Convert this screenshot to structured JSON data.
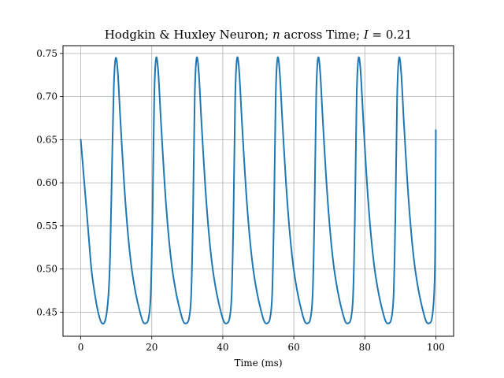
{
  "chart_data": {
    "type": "line",
    "title": {
      "prefix": "Hodgkin & Huxley Neuron; ",
      "var_n": "n",
      "middle": " across Time; ",
      "var_i": "I",
      "suffix": " = 0.21"
    },
    "xlabel": "Time (ms)",
    "ylabel": "",
    "xlim": [
      -5,
      105
    ],
    "ylim": [
      0.422,
      0.759
    ],
    "xticks": [
      0,
      20,
      40,
      60,
      80,
      100
    ],
    "yticks": [
      0.45,
      0.5,
      0.55,
      0.6,
      0.65,
      0.7,
      0.75
    ],
    "xtick_labels": [
      "0",
      "20",
      "40",
      "60",
      "80",
      "100"
    ],
    "ytick_labels": [
      "0.45",
      "0.50",
      "0.55",
      "0.60",
      "0.65",
      "0.70",
      "0.75"
    ],
    "grid": true,
    "series": [
      {
        "color": "#1f77b4",
        "spike_peaks_ms": [
          9.8,
          21.2,
          32.6,
          44.0,
          55.4,
          66.8,
          78.2,
          89.6
        ],
        "peak_value": 0.744,
        "trough_value": 0.437,
        "start_value": 0.65,
        "end_value": 0.661,
        "points": [
          [
            0.0,
            0.65
          ],
          [
            1.0,
            0.6
          ],
          [
            2.0,
            0.55
          ],
          [
            3.0,
            0.5
          ],
          [
            4.0,
            0.47
          ],
          [
            5.0,
            0.448
          ],
          [
            6.0,
            0.437
          ],
          [
            7.0,
            0.442
          ],
          [
            7.8,
            0.47
          ],
          [
            8.3,
            0.52
          ],
          [
            8.8,
            0.62
          ],
          [
            9.3,
            0.71
          ],
          [
            9.8,
            0.744
          ],
          [
            10.4,
            0.73
          ],
          [
            11.2,
            0.67
          ],
          [
            12.2,
            0.6
          ],
          [
            13.2,
            0.545
          ],
          [
            14.2,
            0.505
          ],
          [
            15.2,
            0.478
          ],
          [
            16.2,
            0.458
          ],
          [
            17.4,
            0.44
          ],
          [
            18.3,
            0.437
          ],
          [
            19.1,
            0.443
          ],
          [
            19.7,
            0.47
          ],
          [
            20.2,
            0.56
          ],
          [
            20.7,
            0.7
          ],
          [
            21.2,
            0.744
          ],
          [
            21.8,
            0.73
          ],
          [
            22.6,
            0.67
          ],
          [
            23.6,
            0.6
          ],
          [
            24.6,
            0.545
          ],
          [
            25.6,
            0.505
          ],
          [
            26.6,
            0.478
          ],
          [
            27.6,
            0.458
          ],
          [
            28.8,
            0.44
          ],
          [
            29.7,
            0.437
          ],
          [
            30.5,
            0.443
          ],
          [
            31.1,
            0.47
          ],
          [
            31.6,
            0.56
          ],
          [
            32.1,
            0.7
          ],
          [
            32.6,
            0.744
          ],
          [
            33.2,
            0.73
          ],
          [
            34.0,
            0.67
          ],
          [
            35.0,
            0.6
          ],
          [
            36.0,
            0.545
          ],
          [
            37.0,
            0.505
          ],
          [
            38.0,
            0.478
          ],
          [
            39.0,
            0.458
          ],
          [
            40.2,
            0.44
          ],
          [
            41.1,
            0.437
          ],
          [
            41.9,
            0.443
          ],
          [
            42.5,
            0.47
          ],
          [
            43.0,
            0.56
          ],
          [
            43.5,
            0.7
          ],
          [
            44.0,
            0.744
          ],
          [
            44.6,
            0.73
          ],
          [
            45.4,
            0.67
          ],
          [
            46.4,
            0.6
          ],
          [
            47.4,
            0.545
          ],
          [
            48.4,
            0.505
          ],
          [
            49.4,
            0.478
          ],
          [
            50.4,
            0.458
          ],
          [
            51.6,
            0.44
          ],
          [
            52.5,
            0.437
          ],
          [
            53.3,
            0.443
          ],
          [
            53.9,
            0.47
          ],
          [
            54.4,
            0.56
          ],
          [
            54.9,
            0.7
          ],
          [
            55.4,
            0.744
          ],
          [
            56.0,
            0.73
          ],
          [
            56.8,
            0.67
          ],
          [
            57.8,
            0.6
          ],
          [
            58.8,
            0.545
          ],
          [
            59.8,
            0.505
          ],
          [
            60.8,
            0.478
          ],
          [
            61.8,
            0.458
          ],
          [
            63.0,
            0.44
          ],
          [
            63.9,
            0.437
          ],
          [
            64.7,
            0.443
          ],
          [
            65.3,
            0.47
          ],
          [
            65.8,
            0.56
          ],
          [
            66.3,
            0.7
          ],
          [
            66.8,
            0.744
          ],
          [
            67.4,
            0.73
          ],
          [
            68.2,
            0.67
          ],
          [
            69.2,
            0.6
          ],
          [
            70.2,
            0.545
          ],
          [
            71.2,
            0.505
          ],
          [
            72.2,
            0.478
          ],
          [
            73.2,
            0.458
          ],
          [
            74.4,
            0.44
          ],
          [
            75.3,
            0.437
          ],
          [
            76.1,
            0.443
          ],
          [
            76.7,
            0.47
          ],
          [
            77.2,
            0.56
          ],
          [
            77.7,
            0.7
          ],
          [
            78.2,
            0.744
          ],
          [
            78.8,
            0.73
          ],
          [
            79.6,
            0.67
          ],
          [
            80.6,
            0.6
          ],
          [
            81.6,
            0.545
          ],
          [
            82.6,
            0.505
          ],
          [
            83.6,
            0.478
          ],
          [
            84.6,
            0.458
          ],
          [
            85.8,
            0.44
          ],
          [
            86.7,
            0.437
          ],
          [
            87.5,
            0.443
          ],
          [
            88.1,
            0.47
          ],
          [
            88.6,
            0.56
          ],
          [
            89.1,
            0.7
          ],
          [
            89.6,
            0.744
          ],
          [
            90.2,
            0.73
          ],
          [
            91.0,
            0.67
          ],
          [
            92.0,
            0.6
          ],
          [
            93.0,
            0.545
          ],
          [
            94.0,
            0.505
          ],
          [
            95.0,
            0.478
          ],
          [
            96.0,
            0.458
          ],
          [
            97.2,
            0.44
          ],
          [
            98.1,
            0.437
          ],
          [
            98.9,
            0.443
          ],
          [
            99.5,
            0.47
          ],
          [
            99.8,
            0.52
          ],
          [
            100.0,
            0.661
          ]
        ]
      }
    ]
  }
}
